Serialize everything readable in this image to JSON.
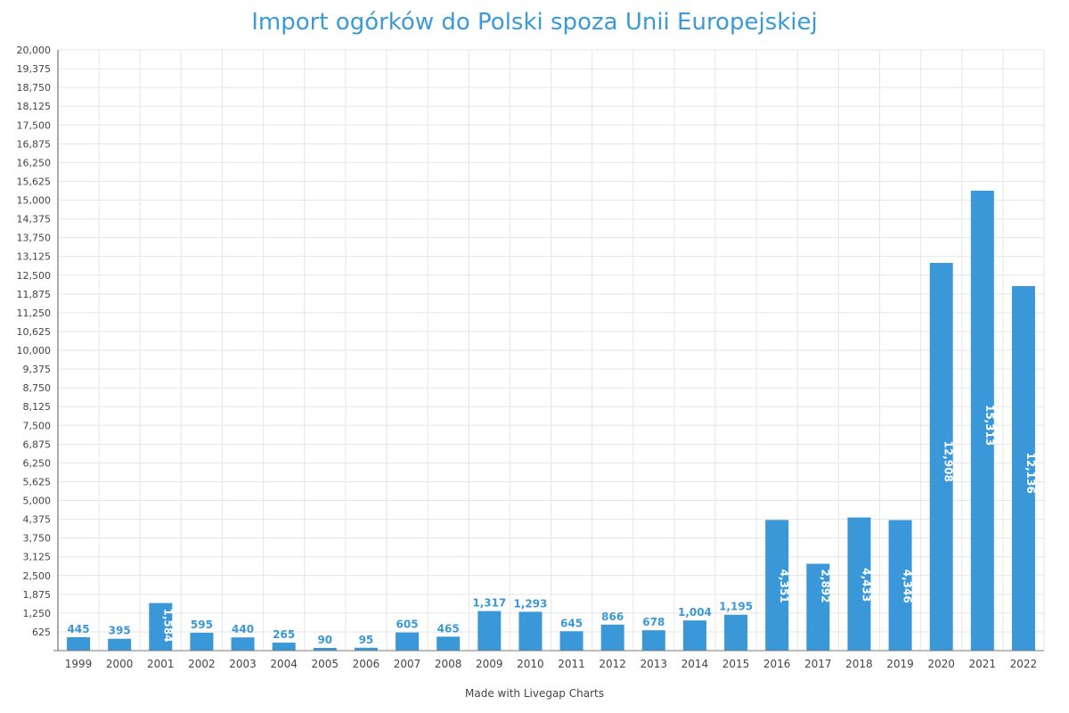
{
  "chart_data": {
    "type": "bar",
    "title": "Import ogórków do Polski spoza Unii Europejskiej",
    "footer": "Made with Livegap Charts",
    "xlabel": "",
    "ylabel": "",
    "ylim": [
      0,
      20000
    ],
    "ytick_step": 625,
    "grid": true,
    "bar_color": "#3a98d8",
    "categories": [
      "1999",
      "2000",
      "2001",
      "2002",
      "2003",
      "2004",
      "2005",
      "2006",
      "2007",
      "2008",
      "2009",
      "2010",
      "2011",
      "2012",
      "2013",
      "2014",
      "2015",
      "2016",
      "2017",
      "2018",
      "2019",
      "2020",
      "2021",
      "2022"
    ],
    "values": [
      445,
      395,
      1584,
      595,
      440,
      265,
      90,
      95,
      605,
      465,
      1317,
      1293,
      645,
      866,
      678,
      1004,
      1195,
      4351,
      2892,
      4433,
      4346,
      12908,
      15313,
      12136
    ]
  }
}
